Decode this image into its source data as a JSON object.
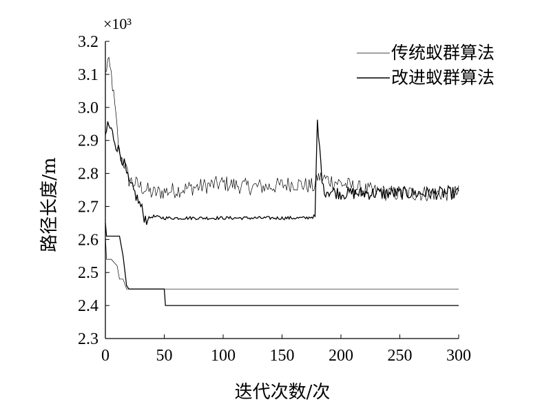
{
  "chart_data": {
    "type": "line",
    "multiplier_label": "×10³",
    "xlabel": "迭代次数/次",
    "ylabel": "路径长度/m",
    "xlim": [
      0,
      300
    ],
    "ylim": [
      2.3,
      3.2
    ],
    "x_ticks": [
      0,
      50,
      100,
      150,
      200,
      250,
      300
    ],
    "y_ticks": [
      2.3,
      2.4,
      2.5,
      2.6,
      2.7,
      2.8,
      2.9,
      3.0,
      3.1,
      3.2
    ],
    "x_tick_labels": [
      "0",
      "50",
      "100",
      "150",
      "200",
      "250",
      "300"
    ],
    "y_tick_labels": [
      "2.3",
      "2.4",
      "2.5",
      "2.6",
      "2.7",
      "2.8",
      "2.9",
      "3.0",
      "3.1",
      "3.2"
    ],
    "grid": false,
    "legend_position": "top-right",
    "series": [
      {
        "name": "传统蚁群算法",
        "style": "thin",
        "average_curve": {
          "x": [
            0,
            2,
            5,
            8,
            12,
            16,
            20,
            25,
            30,
            40,
            60,
            80,
            100,
            120,
            140,
            160,
            178,
            180,
            200,
            220,
            240,
            260,
            280,
            300
          ],
          "y": [
            3.1,
            3.14,
            3.1,
            3.0,
            2.86,
            2.83,
            2.78,
            2.77,
            2.76,
            2.74,
            2.75,
            2.76,
            2.77,
            2.76,
            2.76,
            2.77,
            2.76,
            2.79,
            2.77,
            2.75,
            2.74,
            2.74,
            2.74,
            2.74
          ]
        },
        "best_curve": {
          "x": [
            0,
            1,
            5,
            10,
            12,
            15,
            18,
            20,
            300
          ],
          "y": [
            2.61,
            2.54,
            2.54,
            2.52,
            2.48,
            2.48,
            2.45,
            2.45,
            2.45
          ]
        }
      },
      {
        "name": "改进蚁群算法",
        "style": "solid",
        "average_curve": {
          "x": [
            0,
            2,
            5,
            10,
            15,
            20,
            25,
            30,
            33,
            35,
            40,
            50,
            70,
            90,
            110,
            130,
            150,
            170,
            178,
            180,
            185,
            200,
            220,
            240,
            260,
            280,
            300
          ],
          "y": [
            2.91,
            2.95,
            2.93,
            2.88,
            2.84,
            2.77,
            2.74,
            2.7,
            2.67,
            2.66,
            2.67,
            2.665,
            2.665,
            2.665,
            2.665,
            2.665,
            2.665,
            2.665,
            2.67,
            2.95,
            2.75,
            2.74,
            2.74,
            2.74,
            2.74,
            2.74,
            2.74
          ]
        },
        "best_curve": {
          "x": [
            0,
            1,
            12,
            15,
            18,
            20,
            50,
            51,
            300
          ],
          "y": [
            2.65,
            2.61,
            2.61,
            2.55,
            2.46,
            2.45,
            2.45,
            2.4,
            2.4
          ]
        }
      }
    ]
  }
}
